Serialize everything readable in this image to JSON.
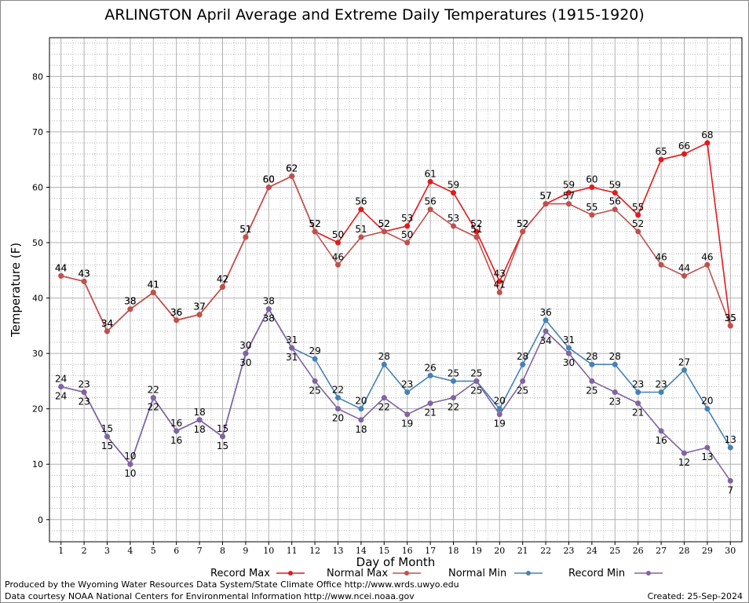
{
  "chart_data": {
    "type": "line",
    "title": "ARLINGTON April Average and Extreme Daily Temperatures (1915-1920)",
    "xlabel": "Day of Month",
    "ylabel": "Temperature (F)",
    "xlim": [
      0.5,
      30.5
    ],
    "ylim": [
      -4,
      87
    ],
    "yticks": [
      0,
      10,
      20,
      30,
      40,
      50,
      60,
      70,
      80
    ],
    "x": [
      1,
      2,
      3,
      4,
      5,
      6,
      7,
      8,
      9,
      10,
      11,
      12,
      13,
      14,
      15,
      16,
      17,
      18,
      19,
      20,
      21,
      22,
      23,
      24,
      25,
      26,
      27,
      28,
      29,
      30
    ],
    "grid": true,
    "legend_placement": "bottom",
    "series": [
      {
        "name": "Record Max",
        "color": "#e31a1c",
        "label_pos": "above",
        "values": [
          44,
          43,
          34,
          38,
          41,
          36,
          37,
          42,
          51,
          60,
          62,
          52,
          50,
          56,
          52,
          53,
          61,
          59,
          52,
          43,
          52,
          57,
          59,
          60,
          59,
          55,
          65,
          66,
          68,
          35
        ]
      },
      {
        "name": "Normal Max",
        "color": "#c0504d",
        "label_pos": "above",
        "values": [
          44,
          43,
          34,
          38,
          41,
          36,
          37,
          42,
          51,
          60,
          62,
          52,
          46,
          51,
          52,
          50,
          56,
          53,
          51,
          41,
          52,
          57,
          57,
          55,
          56,
          52,
          46,
          44,
          46,
          35
        ]
      },
      {
        "name": "Normal Min",
        "color": "#4682b4",
        "label_pos": "above",
        "values": [
          24,
          23,
          15,
          10,
          22,
          16,
          18,
          15,
          30,
          38,
          31,
          29,
          22,
          20,
          28,
          23,
          26,
          25,
          25,
          20,
          28,
          36,
          31,
          28,
          28,
          23,
          23,
          27,
          20,
          13
        ]
      },
      {
        "name": "Record Min",
        "color": "#8064a2",
        "label_pos": "below",
        "values": [
          24,
          23,
          15,
          10,
          22,
          16,
          18,
          15,
          30,
          38,
          31,
          25,
          20,
          18,
          22,
          19,
          21,
          22,
          25,
          19,
          25,
          34,
          30,
          25,
          23,
          21,
          16,
          12,
          13,
          7
        ]
      }
    ]
  },
  "footer": {
    "produced_by": "Produced by the Wyoming Water Resources Data System/State Climate Office http://www.wrds.uwyo.edu",
    "courtesy": "Data courtesy NOAA National Centers for Environmental Information http://www.ncei.noaa.gov",
    "created": "Created:  25-Sep-2024"
  }
}
